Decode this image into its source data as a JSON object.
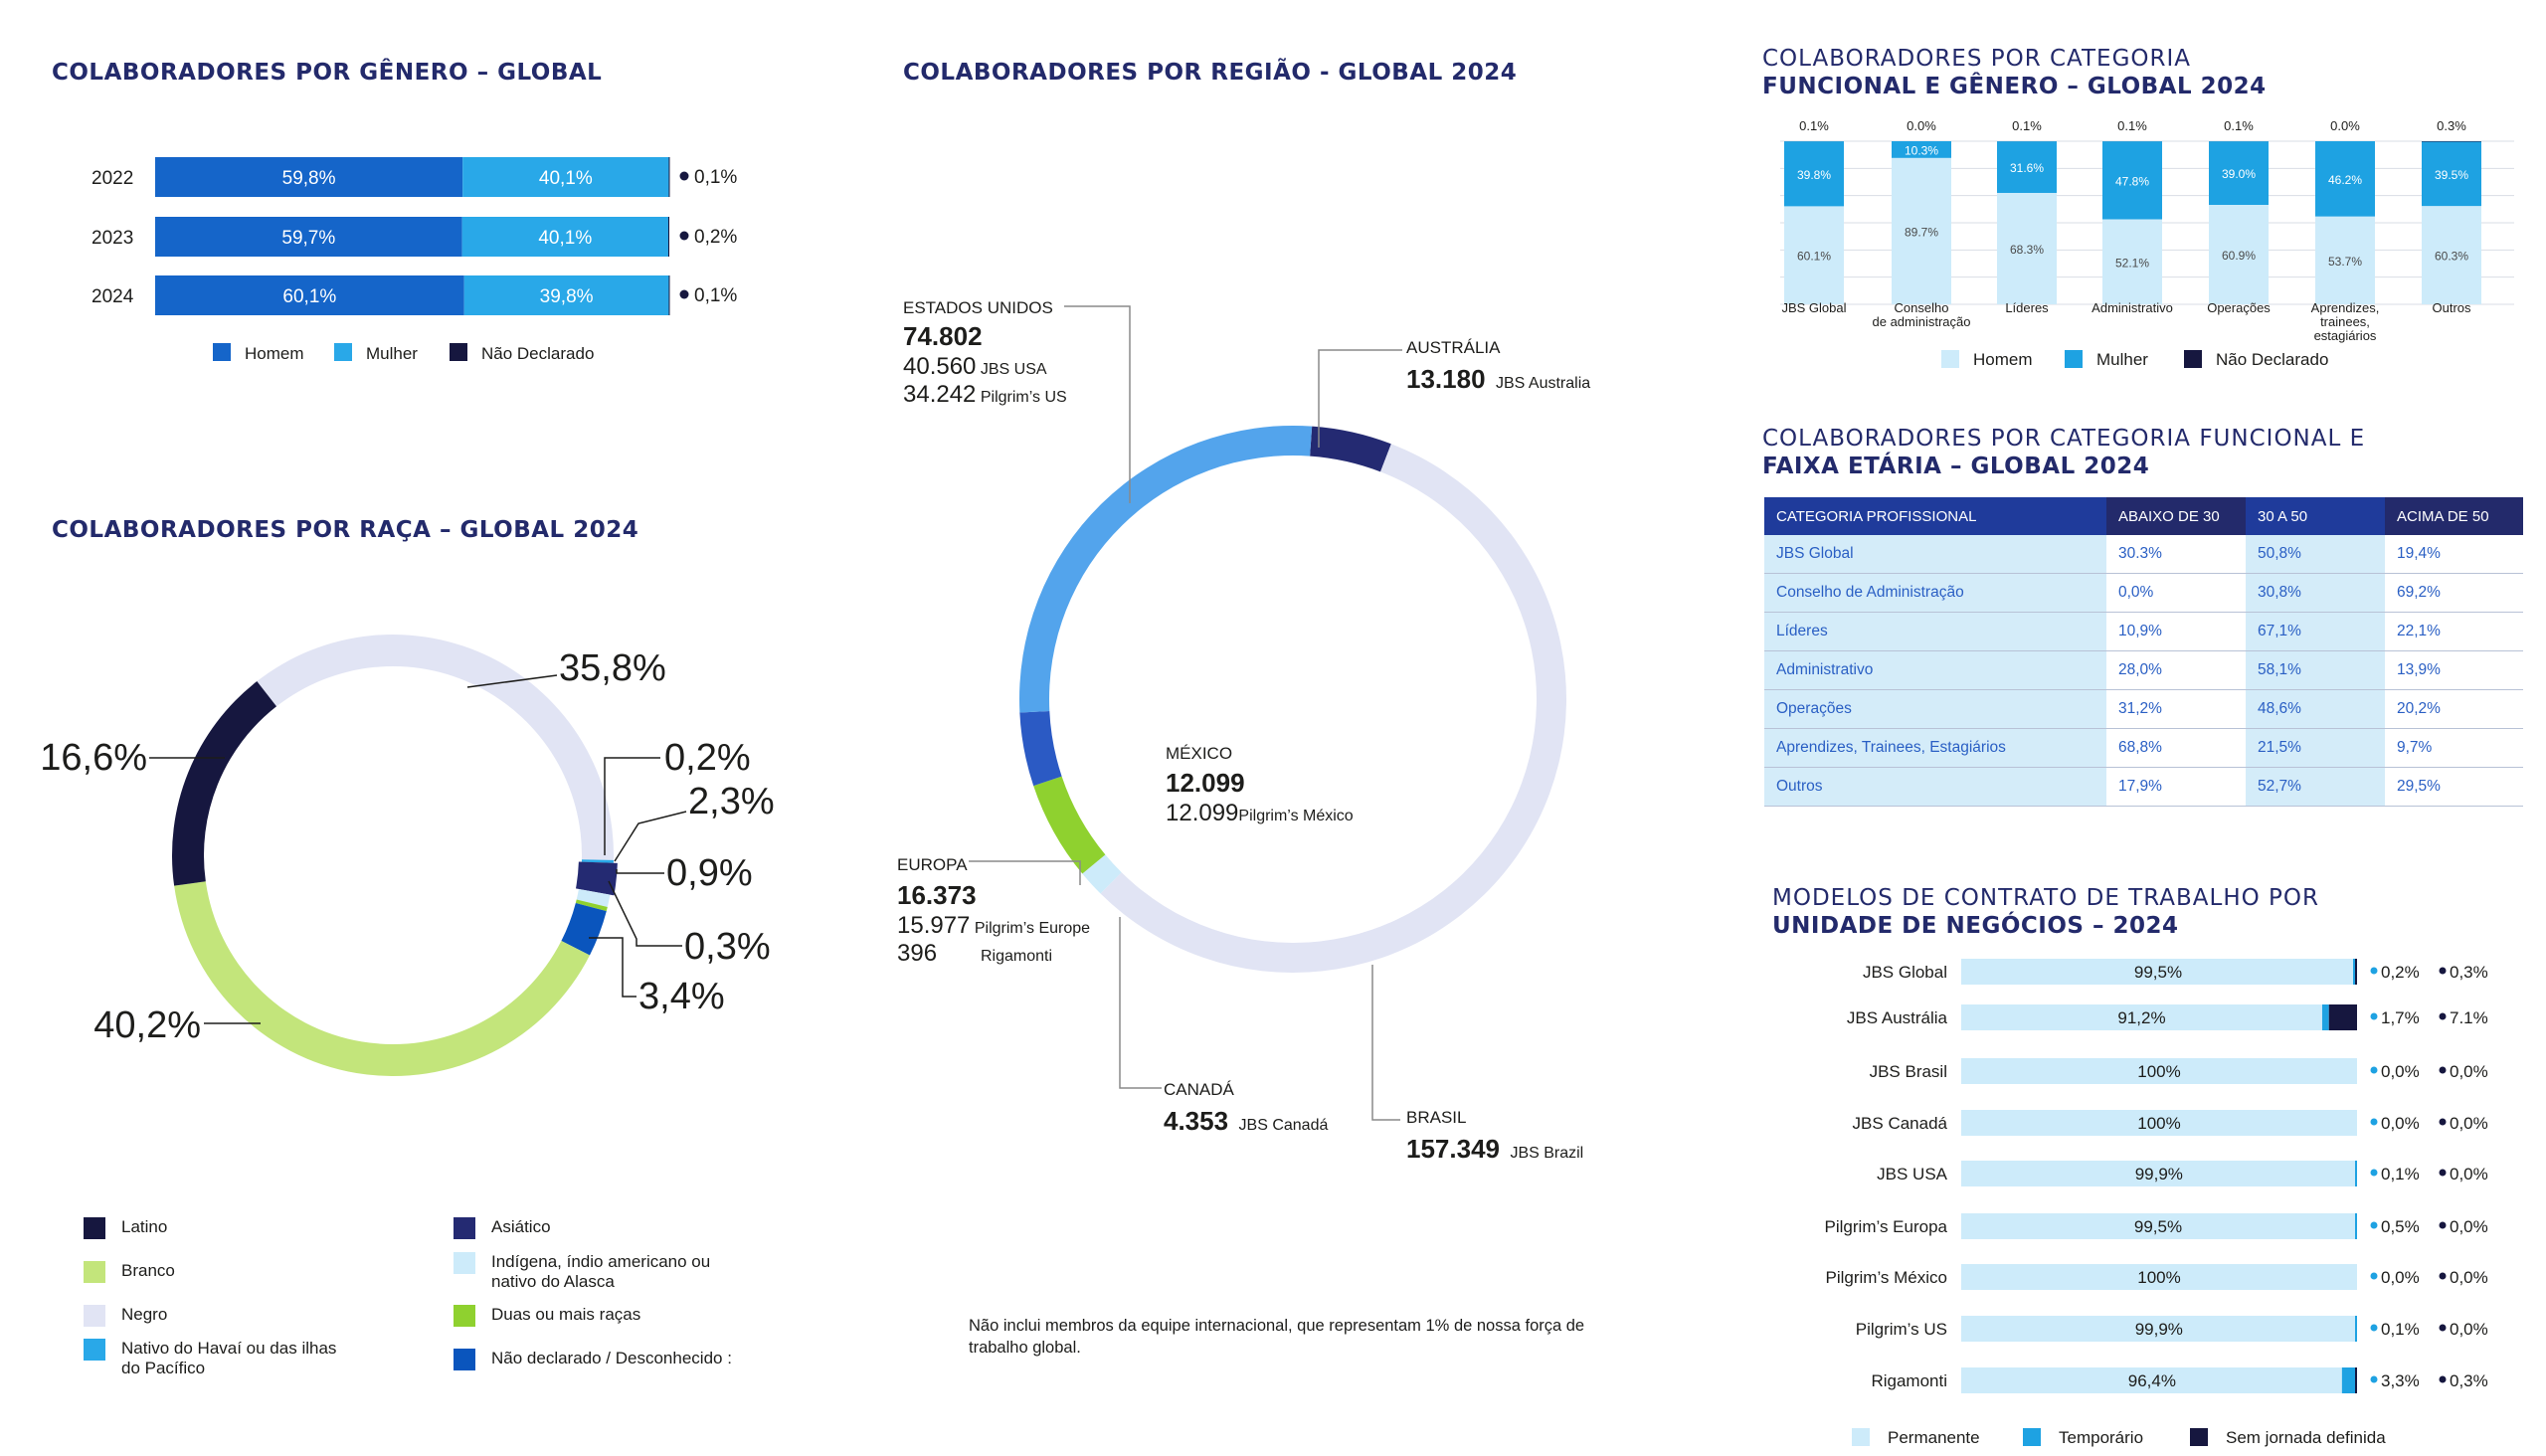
{
  "gender": {
    "title": "COLABORADORES POR GÊNERO – GLOBAL",
    "legend": [
      "Homem",
      "Mulher",
      "Não Declarado"
    ],
    "colors": [
      "#1565c9",
      "#29a8e8",
      "#16173f"
    ],
    "rows": [
      {
        "year": "2022",
        "homem": 59.8,
        "mulher": 40.1,
        "nd": 0.1,
        "homem_label": "59,8%",
        "mulher_label": "40,1%",
        "nd_label": "0,1%"
      },
      {
        "year": "2023",
        "homem": 59.7,
        "mulher": 40.1,
        "nd": 0.2,
        "homem_label": "59,7%",
        "mulher_label": "40,1%",
        "nd_label": "0,2%"
      },
      {
        "year": "2024",
        "homem": 60.1,
        "mulher": 39.8,
        "nd": 0.1,
        "homem_label": "60,1%",
        "mulher_label": "39,8%",
        "nd_label": "0,1%"
      }
    ]
  },
  "race": {
    "title": "COLABORADORES POR RAÇA – GLOBAL 2024",
    "labels": [
      "35,8%",
      "0,2%",
      "2,3%",
      "0,9%",
      "0,3%",
      "3,4%",
      "40,2%",
      "16,6%"
    ],
    "legend": [
      {
        "label": "Latino",
        "color": "#16173f"
      },
      {
        "label": "Branco",
        "color": "#c3e57b"
      },
      {
        "label": "Negro",
        "color": "#e1e4f4"
      },
      {
        "label": "Nativo do Havaí ou das ilhas do Pacífico",
        "color": "#29a8e8"
      },
      {
        "label": "Asiático",
        "color": "#242a72"
      },
      {
        "label": "Indígena, índio americano ou nativo do Alasca",
        "color": "#cdebfa"
      },
      {
        "label": "Duas ou mais raças",
        "color": "#8fd12f"
      },
      {
        "label": "Não declarado / Desconhecido :",
        "color": "#0a55bd"
      }
    ]
  },
  "region": {
    "title": "COLABORADORES POR REGIÃO - GLOBAL 2024",
    "note": "Não inclui membros da equipe internacional, que representam 1% de nossa força de trabalho global.",
    "regions": [
      {
        "name": "ESTADOS UNIDOS",
        "total": "74.802",
        "subs": [
          {
            "value": "40.560",
            "label": "JBS USA"
          },
          {
            "value": "34.242",
            "label": "Pilgrim’s US"
          }
        ]
      },
      {
        "name": "AUSTRÁLIA",
        "total": "13.180",
        "subs": [
          {
            "value": "",
            "label": "JBS Australia"
          }
        ]
      },
      {
        "name": "MÉXICO",
        "total": "12.099",
        "subs": [
          {
            "value": "12.099",
            "label": "Pilgrim’s México"
          }
        ]
      },
      {
        "name": "EUROPA",
        "total": "16.373",
        "subs": [
          {
            "value": "15.977",
            "label": "Pilgrim’s Europe"
          },
          {
            "value": "396",
            "label": "Rigamonti"
          }
        ]
      },
      {
        "name": "CANADÁ",
        "total": "4.353",
        "subs": [
          {
            "value": "",
            "label": "JBS Canadá"
          }
        ]
      },
      {
        "name": "BRASIL",
        "total": "157.349",
        "subs": [
          {
            "value": "",
            "label": "JBS Brazil"
          }
        ]
      }
    ]
  },
  "functional_gender": {
    "title_line1": "COLABORADORES POR CATEGORIA",
    "title_line2": "FUNCIONAL E GÊNERO – GLOBAL 2024",
    "legend": [
      "Homem",
      "Mulher",
      "Não Declarado"
    ],
    "colors": [
      "#cdebfa",
      "#1ea2e2",
      "#16173f"
    ],
    "categories": [
      {
        "name": "JBS Global",
        "homem": 60.1,
        "mulher": 39.8,
        "nd": 0.1,
        "homem_label": "60.1%",
        "mulher_label": "39.8%",
        "nd_label": "0.1%"
      },
      {
        "name": "Conselho de administração",
        "homem": 89.7,
        "mulher": 10.3,
        "nd": 0.0,
        "homem_label": "89.7%",
        "mulher_label": "10.3%",
        "nd_label": "0.0%"
      },
      {
        "name": "Líderes",
        "homem": 68.3,
        "mulher": 31.6,
        "nd": 0.1,
        "homem_label": "68.3%",
        "mulher_label": "31.6%",
        "nd_label": "0.1%"
      },
      {
        "name": "Administrativo",
        "homem": 52.1,
        "mulher": 47.8,
        "nd": 0.1,
        "homem_label": "52.1%",
        "mulher_label": "47.8%",
        "nd_label": "0.1%"
      },
      {
        "name": "Operações",
        "homem": 60.9,
        "mulher": 39.0,
        "nd": 0.1,
        "homem_label": "60.9%",
        "mulher_label": "39.0%",
        "nd_label": "0.1%"
      },
      {
        "name": "Aprendizes, trainees, estagiários",
        "homem": 53.7,
        "mulher": 46.2,
        "nd": 0.0,
        "homem_label": "53.7%",
        "mulher_label": "46.2%",
        "nd_label": "0.0%"
      },
      {
        "name": "Outros",
        "homem": 60.3,
        "mulher": 39.5,
        "nd": 0.3,
        "homem_label": "60.3%",
        "mulher_label": "39.5%",
        "nd_label": "0.3%"
      }
    ]
  },
  "age": {
    "title_line1": "COLABORADORES POR CATEGORIA FUNCIONAL E",
    "title_line2": "FAIXA ETÁRIA – GLOBAL 2024",
    "headers": [
      "CATEGORIA PROFISSIONAL",
      "ABAIXO DE 30",
      "30 A 50",
      "ACIMA DE 50"
    ],
    "rows": [
      [
        "JBS Global",
        "30.3%",
        "50,8%",
        "19,4%"
      ],
      [
        "Conselho de Administração",
        "0,0%",
        "30,8%",
        "69,2%"
      ],
      [
        "Líderes",
        "10,9%",
        "67,1%",
        "22,1%"
      ],
      [
        "Administrativo",
        "28,0%",
        "58,1%",
        "13,9%"
      ],
      [
        "Operações",
        "31,2%",
        "48,6%",
        "20,2%"
      ],
      [
        "Aprendizes, Trainees, Estagiários",
        "68,8%",
        "21,5%",
        "9,7%"
      ],
      [
        "Outros",
        "17,9%",
        "52,7%",
        "29,5%"
      ]
    ]
  },
  "contracts": {
    "title_line1": "MODELOS DE CONTRATO DE TRABALHO POR",
    "title_line2": "UNIDADE DE NEGÓCIOS – 2024",
    "legend": [
      "Permanente",
      "Temporário",
      "Sem jornada definida"
    ],
    "colors": [
      "#cdebfa",
      "#1ea2e2",
      "#16173f"
    ],
    "units": [
      {
        "name": "JBS Global",
        "perm": 99.5,
        "temp": 0.2,
        "sem": 0.3,
        "perm_label": "99,5%",
        "temp_label": "0,2%",
        "sem_label": "0,3%"
      },
      {
        "name": "JBS Austrália",
        "perm": 91.2,
        "temp": 1.7,
        "sem": 7.1,
        "perm_label": "91,2%",
        "temp_label": "1,7%",
        "sem_label": "7.1%"
      },
      {
        "name": "JBS Brasil",
        "perm": 100,
        "temp": 0.0,
        "sem": 0.0,
        "perm_label": "100%",
        "temp_label": "0,0%",
        "sem_label": "0,0%"
      },
      {
        "name": "JBS Canadá",
        "perm": 100,
        "temp": 0.0,
        "sem": 0.0,
        "perm_label": "100%",
        "temp_label": "0,0%",
        "sem_label": "0,0%"
      },
      {
        "name": "JBS USA",
        "perm": 99.9,
        "temp": 0.1,
        "sem": 0.0,
        "perm_label": "99,9%",
        "temp_label": "0,1%",
        "sem_label": "0,0%"
      },
      {
        "name": "Pilgrim’s Europa",
        "perm": 99.5,
        "temp": 0.5,
        "sem": 0.0,
        "perm_label": "99,5%",
        "temp_label": "0,5%",
        "sem_label": "0,0%"
      },
      {
        "name": "Pilgrim’s México",
        "perm": 100,
        "temp": 0.0,
        "sem": 0.0,
        "perm_label": "100%",
        "temp_label": "0,0%",
        "sem_label": "0,0%"
      },
      {
        "name": "Pilgrim’s US",
        "perm": 99.9,
        "temp": 0.1,
        "sem": 0.0,
        "perm_label": "99,9%",
        "temp_label": "0,1%",
        "sem_label": "0,0%"
      },
      {
        "name": "Rigamonti",
        "perm": 96.4,
        "temp": 3.3,
        "sem": 0.3,
        "perm_label": "96,4%",
        "temp_label": "3,3%",
        "sem_label": "0,3%"
      }
    ]
  },
  "chart_data": [
    {
      "type": "bar",
      "orientation": "horizontal",
      "stacked": true,
      "title": "COLABORADORES POR GÊNERO – GLOBAL",
      "categories": [
        "2022",
        "2023",
        "2024"
      ],
      "series": [
        {
          "name": "Homem",
          "values": [
            59.8,
            59.7,
            60.1
          ]
        },
        {
          "name": "Mulher",
          "values": [
            40.1,
            40.1,
            39.8
          ]
        },
        {
          "name": "Não Declarado",
          "values": [
            0.1,
            0.2,
            0.1
          ]
        }
      ],
      "legend": "bottom"
    },
    {
      "type": "pie",
      "donut": true,
      "title": "COLABORADORES POR RAÇA – GLOBAL 2024",
      "labels": [
        "Negro",
        "Nativo do Havaí ou das ilhas do Pacífico",
        "Asiático",
        "Indígena, índio americano ou nativo do Alasca",
        "Duas ou mais raças",
        "Não declarado / Desconhecido :",
        "Branco",
        "Latino"
      ],
      "values": [
        35.8,
        0.2,
        2.3,
        0.9,
        0.3,
        3.4,
        40.2,
        16.6
      ],
      "legend": "bottom"
    },
    {
      "type": "pie",
      "donut": true,
      "title": "COLABORADORES POR REGIÃO - GLOBAL 2024",
      "labels": [
        "AUSTRÁLIA",
        "BRASIL",
        "CANADÁ",
        "EUROPA",
        "MÉXICO",
        "ESTADOS UNIDOS"
      ],
      "values": [
        13180,
        157349,
        4353,
        16373,
        12099,
        74802
      ]
    },
    {
      "type": "bar",
      "stacked": true,
      "title": "COLABORADORES POR CATEGORIA FUNCIONAL E GÊNERO – GLOBAL 2024",
      "categories": [
        "JBS Global",
        "Conselho de administração",
        "Líderes",
        "Administrativo",
        "Operações",
        "Aprendizes, trainees, estagiários",
        "Outros"
      ],
      "series": [
        {
          "name": "Homem",
          "values": [
            60.1,
            89.7,
            68.3,
            52.1,
            60.9,
            53.7,
            60.3
          ]
        },
        {
          "name": "Mulher",
          "values": [
            39.8,
            10.3,
            31.6,
            47.8,
            39.0,
            46.2,
            39.5
          ]
        },
        {
          "name": "Não Declarado",
          "values": [
            0.1,
            0.0,
            0.1,
            0.1,
            0.1,
            0.0,
            0.3
          ]
        }
      ],
      "ylim": [
        0,
        100
      ],
      "grid": true,
      "legend": "bottom"
    },
    {
      "type": "table",
      "title": "COLABORADORES POR CATEGORIA FUNCIONAL E FAIXA ETÁRIA – GLOBAL 2024",
      "columns": [
        "CATEGORIA PROFISSIONAL",
        "ABAIXO DE 30",
        "30 A 50",
        "ACIMA DE 50"
      ],
      "rows": [
        [
          "JBS Global",
          "30.3%",
          "50,8%",
          "19,4%"
        ],
        [
          "Conselho de Administração",
          "0,0%",
          "30,8%",
          "69,2%"
        ],
        [
          "Líderes",
          "10,9%",
          "67,1%",
          "22,1%"
        ],
        [
          "Administrativo",
          "28,0%",
          "58,1%",
          "13,9%"
        ],
        [
          "Operações",
          "31,2%",
          "48,6%",
          "20,2%"
        ],
        [
          "Aprendizes, Trainees, Estagiários",
          "68,8%",
          "21,5%",
          "9,7%"
        ],
        [
          "Outros",
          "17,9%",
          "52,7%",
          "29,5%"
        ]
      ]
    },
    {
      "type": "bar",
      "orientation": "horizontal",
      "stacked": true,
      "title": "MODELOS DE CONTRATO DE TRABALHO POR UNIDADE DE NEGÓCIOS – 2024",
      "categories": [
        "JBS Global",
        "JBS Austrália",
        "JBS Brasil",
        "JBS Canadá",
        "JBS USA",
        "Pilgrim’s Europa",
        "Pilgrim’s México",
        "Pilgrim’s US",
        "Rigamonti"
      ],
      "series": [
        {
          "name": "Permanente",
          "values": [
            99.5,
            91.2,
            100,
            100,
            99.9,
            99.5,
            100,
            99.9,
            96.4
          ]
        },
        {
          "name": "Temporário",
          "values": [
            0.2,
            1.7,
            0.0,
            0.0,
            0.1,
            0.5,
            0.0,
            0.1,
            3.3
          ]
        },
        {
          "name": "Sem jornada definida",
          "values": [
            0.3,
            7.1,
            0.0,
            0.0,
            0.0,
            0.0,
            0.0,
            0.0,
            0.3
          ]
        }
      ],
      "legend": "bottom"
    }
  ]
}
